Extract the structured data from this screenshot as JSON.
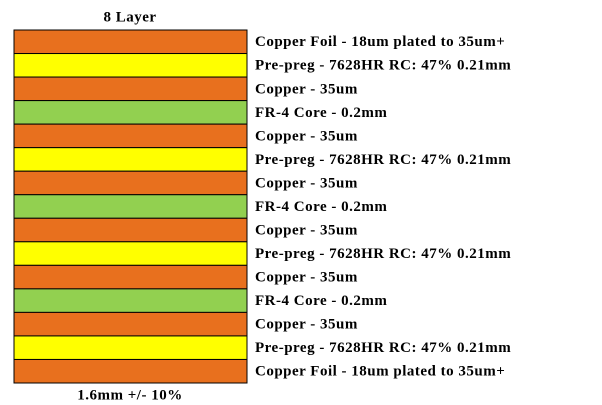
{
  "title": "8 Layer",
  "footer": "1.6mm +/- 10%",
  "layers": [
    {
      "label": "Copper Foil - 18um plated to 35um+",
      "color": "#e8701e"
    },
    {
      "label": "Pre-preg - 7628HR RC: 47% 0.21mm",
      "color": "#ffff00"
    },
    {
      "label": "Copper - 35um",
      "color": "#e8701e"
    },
    {
      "label": "FR-4 Core - 0.2mm",
      "color": "#92d050"
    },
    {
      "label": "Copper - 35um",
      "color": "#e8701e"
    },
    {
      "label": "Pre-preg - 7628HR RC: 47% 0.21mm",
      "color": "#ffff00"
    },
    {
      "label": "Copper - 35um",
      "color": "#e8701e"
    },
    {
      "label": "FR-4 Core - 0.2mm",
      "color": "#92d050"
    },
    {
      "label": "Copper - 35um",
      "color": "#e8701e"
    },
    {
      "label": "Pre-preg - 7628HR RC: 47% 0.21mm",
      "color": "#ffff00"
    },
    {
      "label": "Copper - 35um",
      "color": "#e8701e"
    },
    {
      "label": "FR-4 Core - 0.2mm",
      "color": "#92d050"
    },
    {
      "label": "Copper - 35um",
      "color": "#e8701e"
    },
    {
      "label": "Pre-preg - 7628HR RC: 47% 0.21mm",
      "color": "#ffff00"
    },
    {
      "label": "Copper Foil - 18um plated to 35um+",
      "color": "#e8701e"
    }
  ]
}
